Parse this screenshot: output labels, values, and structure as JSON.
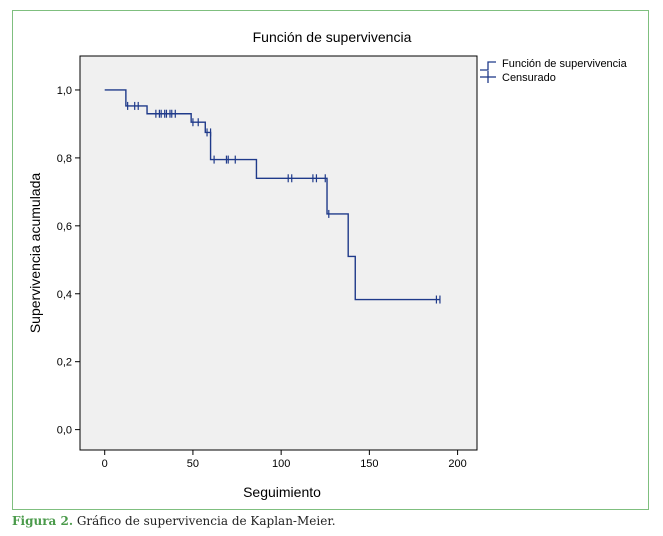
{
  "chart_data": {
    "type": "line",
    "title": "Función de supervivencia",
    "xlabel": "Seguimiento",
    "ylabel": "Supervivencia acumulada",
    "xlim": [
      -14,
      211
    ],
    "ylim": [
      -0.06,
      1.1
    ],
    "x_ticks": [
      0,
      50,
      100,
      150,
      200
    ],
    "x_tick_labels": [
      "0",
      "50",
      "100",
      "150",
      "200"
    ],
    "y_ticks": [
      0.0,
      0.2,
      0.4,
      0.6,
      0.8,
      1.0
    ],
    "y_tick_labels": [
      "0,0",
      "0,2",
      "0,4",
      "0,6",
      "0,8",
      "1,0"
    ],
    "legend": {
      "position": "top-right",
      "entries": [
        "Función de supervivencia",
        "Censurado"
      ]
    },
    "series": [
      {
        "name": "Función de supervivencia",
        "style": "step",
        "color": "#1f3a8a",
        "x": [
          0,
          12,
          24,
          49,
          57,
          60,
          86,
          126,
          138,
          142,
          190
        ],
        "y": [
          1.0,
          0.953,
          0.93,
          0.905,
          0.875,
          0.795,
          0.74,
          0.635,
          0.51,
          0.383,
          0.383
        ]
      },
      {
        "name": "Censurado",
        "style": "marker",
        "color": "#1f3a8a",
        "x": [
          13,
          17,
          19,
          29,
          31,
          32,
          34,
          35,
          37,
          38,
          40,
          50,
          53,
          58,
          60,
          62,
          69,
          70,
          74,
          104,
          106,
          118,
          120,
          125,
          127,
          188,
          190
        ],
        "y": [
          0.953,
          0.953,
          0.953,
          0.93,
          0.93,
          0.93,
          0.93,
          0.93,
          0.93,
          0.93,
          0.93,
          0.905,
          0.905,
          0.875,
          0.875,
          0.795,
          0.795,
          0.795,
          0.795,
          0.74,
          0.74,
          0.74,
          0.74,
          0.74,
          0.635,
          0.383,
          0.383
        ]
      }
    ],
    "grid": false,
    "background_color": "#f0f0f0"
  },
  "caption": {
    "label": "Figura 2.",
    "text": " Gráfico de supervivencia de Kaplan-Meier."
  }
}
